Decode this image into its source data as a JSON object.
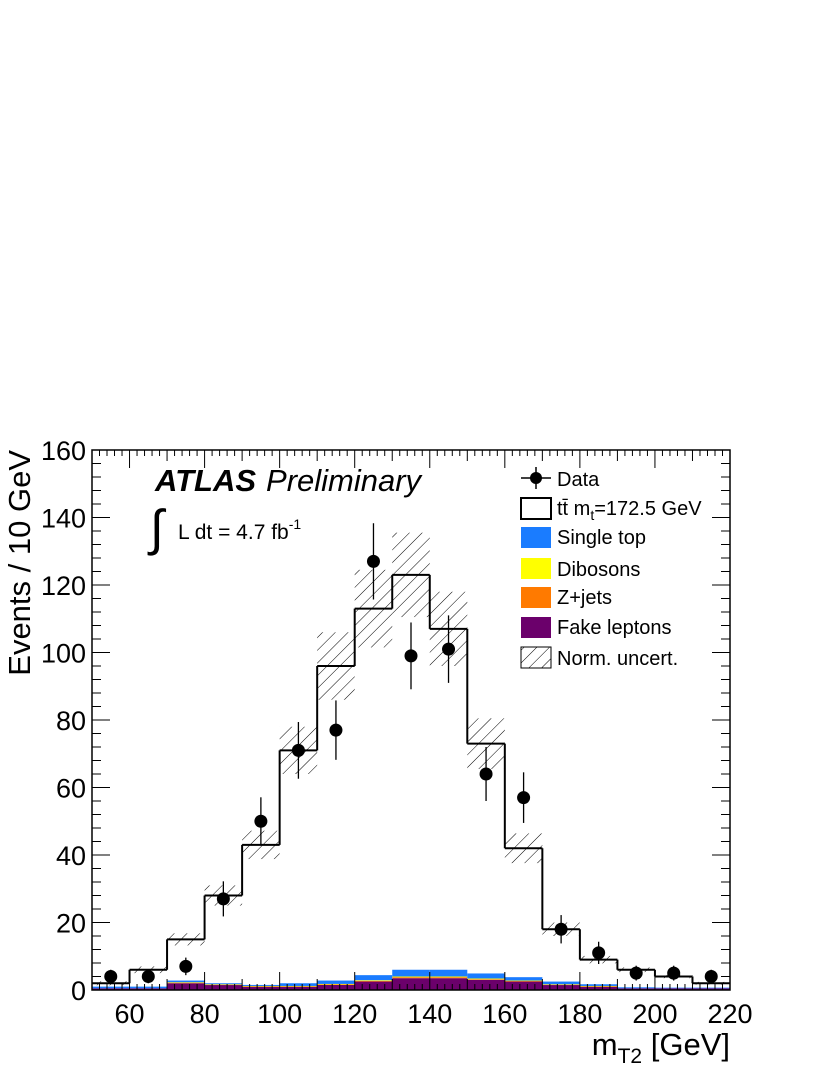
{
  "chart_data": {
    "type": "bar",
    "x_bin_edges": [
      50,
      60,
      70,
      80,
      90,
      100,
      110,
      120,
      130,
      140,
      150,
      160,
      170,
      180,
      190,
      200,
      210,
      220
    ],
    "xlim": [
      50,
      220
    ],
    "ylim": [
      0,
      160
    ],
    "x_ticks": [
      60,
      80,
      100,
      120,
      140,
      160,
      180,
      200,
      220
    ],
    "y_ticks": [
      0,
      20,
      40,
      60,
      80,
      100,
      120,
      140,
      160
    ],
    "xlabel_main": "m",
    "xlabel_sub": "T2",
    "xlabel_unit": " [GeV]",
    "ylabel": "Events / 10 GeV",
    "grid": false,
    "legend_position": "top-right",
    "atlas_label": "ATLAS",
    "atlas_sublabel": "Preliminary",
    "lumi_text": "L dt = 4.7 fb",
    "lumi_sup": "-1",
    "legend": {
      "data": "Data",
      "ttbar_prefix": "tt̄ m",
      "ttbar_sub": "t",
      "ttbar_suffix": "=172.5 GeV",
      "single_top": "Single top",
      "dibosons": "Dibosons",
      "zjets": "Z+jets",
      "fake": "Fake leptons",
      "uncert": "Norm. uncert."
    },
    "colors": {
      "single_top": "#1a7cff",
      "dibosons": "#ffff00",
      "zjets": "#ff7a00",
      "fake": "#6b006b",
      "ttbar_line": "#000000"
    },
    "series": [
      {
        "name": "Data",
        "values": [
          4,
          4,
          7,
          27,
          50,
          71,
          77,
          127,
          99,
          101,
          64,
          57,
          18,
          11,
          5,
          5,
          4
        ],
        "errors": [
          2,
          2,
          2.6,
          5.2,
          7.1,
          8.4,
          8.8,
          11.3,
          9.9,
          10,
          8,
          7.5,
          4.2,
          3.3,
          2.2,
          2.2,
          2
        ]
      },
      {
        "name": "tt̄ m_t=172.5 GeV (stack total)",
        "values": [
          2,
          6,
          15,
          28,
          43,
          71,
          96,
          113,
          123,
          107,
          73,
          42,
          18,
          9,
          6,
          4,
          2
        ]
      },
      {
        "name": "Fake leptons",
        "values": [
          0.5,
          0.5,
          2,
          1.5,
          1,
          1,
          1.5,
          2.5,
          3.5,
          3.5,
          3,
          2.5,
          1.5,
          1,
          0.5,
          0.5,
          0.5
        ]
      },
      {
        "name": "Z+jets",
        "values": [
          0,
          0,
          0.2,
          0.1,
          0.1,
          0.1,
          0.2,
          0.2,
          0.3,
          0.3,
          0.2,
          0.2,
          0.1,
          0.1,
          0,
          0,
          0
        ]
      },
      {
        "name": "Dibosons",
        "values": [
          0,
          0,
          0.1,
          0.1,
          0.1,
          0.1,
          0.1,
          0.2,
          0.2,
          0.2,
          0.2,
          0.1,
          0.1,
          0.1,
          0,
          0,
          0
        ]
      },
      {
        "name": "Single top",
        "values": [
          0.5,
          0.5,
          0.5,
          0.3,
          0.3,
          0.8,
          1,
          1.5,
          2,
          2,
          1.5,
          1,
          0.8,
          0.5,
          0.3,
          0.2,
          0.2
        ]
      }
    ],
    "uncert_half_width": [
      0.6,
      1,
      1.8,
      3,
      4.2,
      7,
      10,
      11.5,
      12.5,
      11,
      7.5,
      4.4,
      2,
      1.1,
      0.7,
      0.5,
      0.4
    ]
  }
}
